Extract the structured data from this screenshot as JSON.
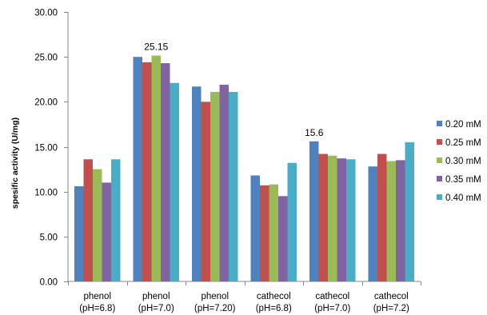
{
  "chart_data": {
    "type": "bar",
    "title": "",
    "xlabel": "",
    "ylabel": "spesific activity (U/mg)",
    "ylim": [
      0,
      30
    ],
    "yticks": [
      "0.00",
      "5.00",
      "10.00",
      "15.00",
      "20.00",
      "25.00",
      "30.00"
    ],
    "grid": false,
    "legend_position": "right",
    "categories": [
      [
        "phenol",
        "(pH=6.8)"
      ],
      [
        "phenol",
        "(pH=7.0)"
      ],
      [
        "phenol",
        "(pH=7.20)"
      ],
      [
        "cathecol",
        "(pH=6.8)"
      ],
      [
        "cathecol",
        "(pH=7.0)"
      ],
      [
        "cathecol",
        "(pH=7.2)"
      ]
    ],
    "series": [
      {
        "name": "0.20 mM",
        "color": "#4F81BD",
        "values": [
          10.6,
          25.0,
          21.7,
          11.8,
          15.6,
          12.8
        ]
      },
      {
        "name": "0.25 mM",
        "color": "#C0504D",
        "values": [
          13.6,
          24.4,
          20.0,
          10.7,
          14.2,
          14.2
        ]
      },
      {
        "name": "0.30 mM",
        "color": "#9BBB59",
        "values": [
          12.5,
          25.15,
          21.1,
          10.8,
          14.0,
          13.4
        ]
      },
      {
        "name": "0.35 mM",
        "color": "#8064A2",
        "values": [
          11.0,
          24.3,
          21.9,
          9.5,
          13.7,
          13.5
        ]
      },
      {
        "name": "0.40 mM",
        "color": "#4BACC6",
        "values": [
          13.6,
          22.1,
          21.1,
          13.2,
          13.6,
          15.5
        ]
      }
    ],
    "annotations": [
      {
        "text": "25.15",
        "category_index": 1,
        "series_index": 2
      },
      {
        "text": "15.6",
        "category_index": 4,
        "series_index": 0
      }
    ]
  }
}
